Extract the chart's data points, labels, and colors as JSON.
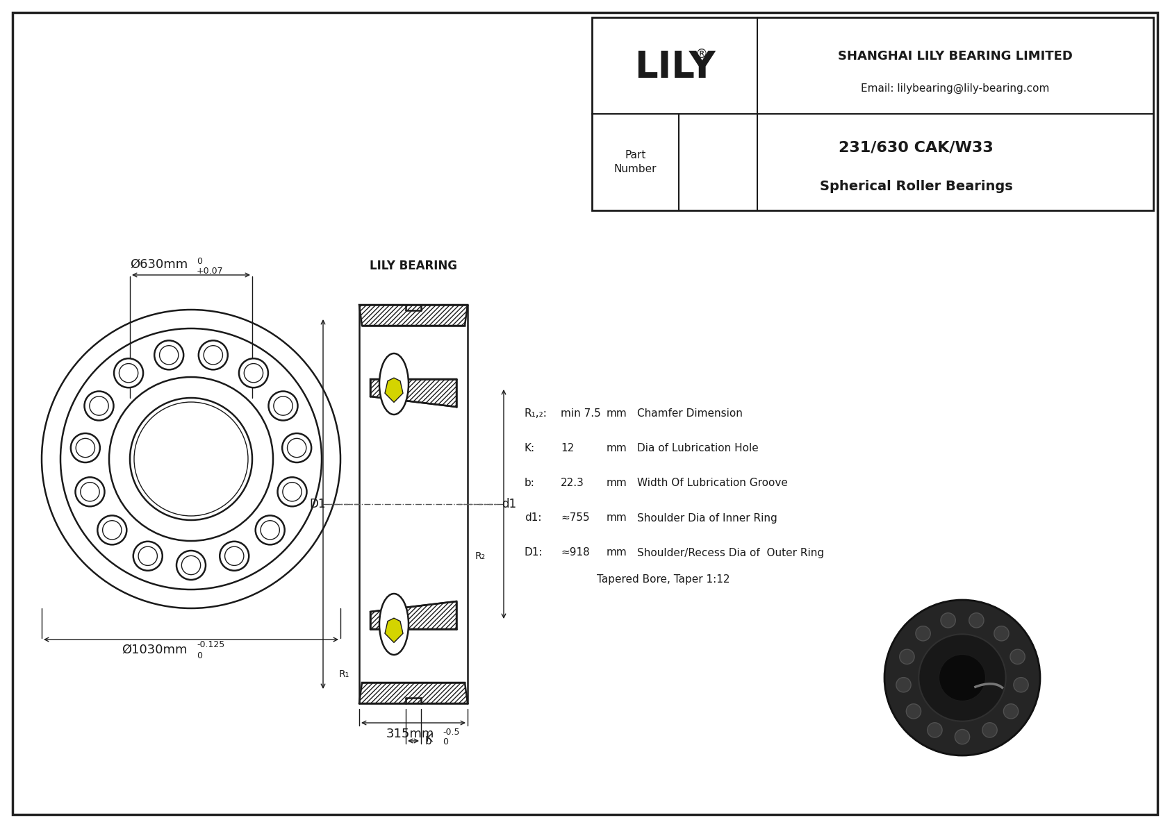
{
  "bg_color": "#ffffff",
  "line_color": "#1a1a1a",
  "outer_diameter_label": "Ø1030mm",
  "inner_diameter_label": "Ø630mm",
  "width_label": "315mm",
  "spec_title": "Tapered Bore, Taper 1:12",
  "specs": [
    [
      "D1:",
      "≈918",
      "mm",
      "Shoulder/Recess Dia of  Outer Ring"
    ],
    [
      "d1:",
      "≈755",
      "mm",
      "Shoulder Dia of Inner Ring"
    ],
    [
      "b:",
      "22.3",
      "mm",
      "Width Of Lubrication Groove"
    ],
    [
      "K:",
      "12",
      "mm",
      "Dia of Lubrication Hole"
    ],
    [
      "R₁,₂:",
      "min 7.5",
      "mm",
      "Chamfer Dimension"
    ]
  ],
  "company": "SHANGHAI LILY BEARING LIMITED",
  "email": "Email: lilybearing@lily-bearing.com",
  "part_number": "231/630 CAK/W33",
  "bearing_type": "Spherical Roller Bearings",
  "lily_label": "LILY BEARING"
}
